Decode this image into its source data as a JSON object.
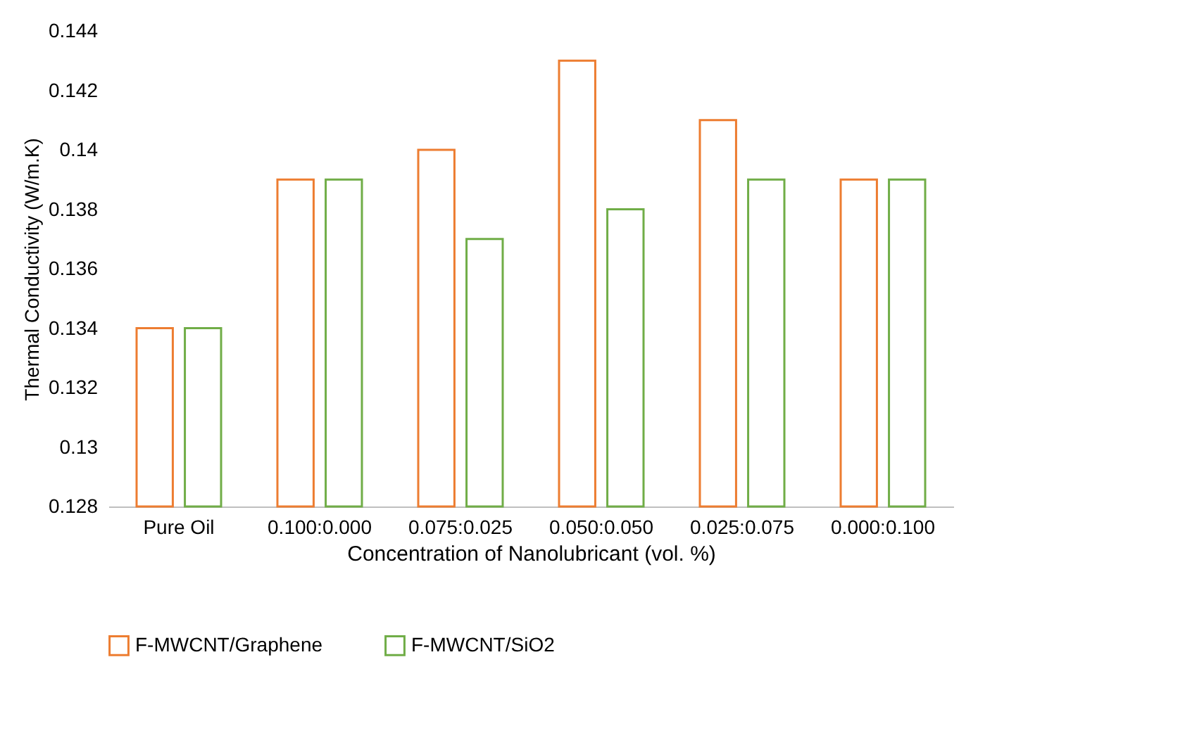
{
  "chart_data": {
    "type": "bar",
    "xlabel": "Concentration of Nanolubricant (vol. %)",
    "ylabel": "Thermal Conductivity (W/m.K)",
    "categories": [
      "Pure Oil",
      "0.100:0.000",
      "0.075:0.025",
      "0.050:0.050",
      "0.025:0.075",
      "0.000:0.100"
    ],
    "series": [
      {
        "name": "F-MWCNT/Graphene",
        "color": "#ed7d31",
        "values": [
          0.134,
          0.139,
          0.14,
          0.143,
          0.141,
          0.139
        ]
      },
      {
        "name": "F-MWCNT/SiO2",
        "color": "#70ad47",
        "values": [
          0.134,
          0.139,
          0.137,
          0.138,
          0.139,
          0.139
        ]
      }
    ],
    "ylim": [
      0.128,
      0.144
    ],
    "yticks": [
      0.128,
      0.13,
      0.132,
      0.134,
      0.136,
      0.138,
      0.14,
      0.142,
      0.144
    ],
    "legend": "bottom"
  }
}
